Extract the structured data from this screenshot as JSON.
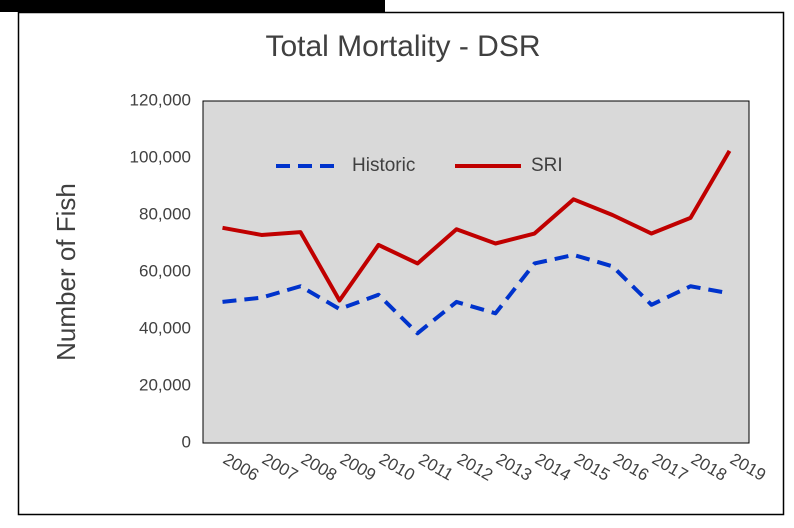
{
  "chart_data": {
    "type": "line",
    "title": "Total Mortality - DSR",
    "ylabel": "Number of Fish",
    "categories": [
      "2006",
      "2007",
      "2008",
      "2009",
      "2010",
      "2011",
      "2012",
      "2013",
      "2014",
      "2015",
      "2016",
      "2017",
      "2018",
      "2019"
    ],
    "series": [
      {
        "name": "Historic",
        "color": "#0033cc",
        "dash": true,
        "values": [
          49500,
          51000,
          55000,
          47000,
          52000,
          38500,
          49500,
          45500,
          63000,
          66000,
          62000,
          48500,
          55000,
          52500
        ]
      },
      {
        "name": "SRI",
        "color": "#c00000",
        "dash": false,
        "values": [
          75500,
          73000,
          74000,
          50000,
          69500,
          63000,
          75000,
          70000,
          73500,
          85500,
          80000,
          73500,
          79000,
          102500
        ]
      }
    ],
    "ylim": [
      0,
      120000
    ],
    "yticks": [
      0,
      {
        "value": 20000,
        "label": "20,000"
      },
      {
        "value": 40000,
        "label": "40,000"
      },
      {
        "value": 60000,
        "label": "60,000"
      },
      {
        "value": 80000,
        "label": "80,000"
      },
      {
        "value": 100000,
        "label": "100,000"
      },
      {
        "value": 120000,
        "label": "120,000"
      }
    ],
    "grid": false,
    "legend": "top"
  }
}
